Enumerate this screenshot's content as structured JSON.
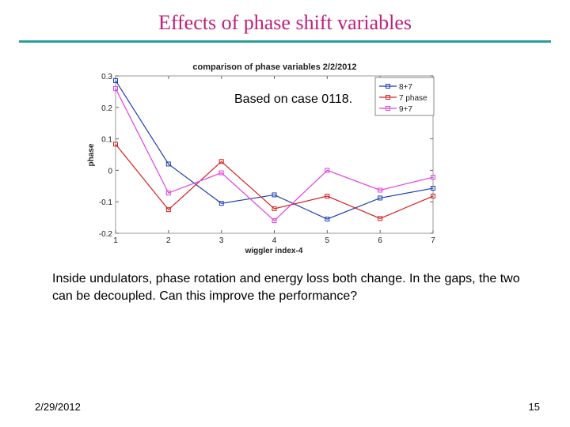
{
  "slide": {
    "title": "Effects of phase shift variables",
    "body": "Inside undulators, phase rotation and energy loss both change. In the gaps, the two can be decoupled. Can this improve the performance?",
    "date": "2/29/2012",
    "page_number": "15"
  },
  "chart_data": {
    "type": "line",
    "title": "comparison of phase variables 2/2/2012",
    "annotation": "Based on case 0118.",
    "xlabel": "wiggler index-4",
    "ylabel": "phase",
    "xlim": [
      1,
      7
    ],
    "ylim": [
      -0.2,
      0.3
    ],
    "x_ticks": [
      "1",
      "2",
      "3",
      "4",
      "5",
      "6",
      "7"
    ],
    "y_ticks": [
      "0.3",
      "0.2",
      "0.1",
      "0",
      "-0.1",
      "-0.2"
    ],
    "legend_position": "top-right",
    "x": [
      1,
      2,
      3,
      4,
      5,
      6,
      7
    ],
    "series": [
      {
        "name": "8+7",
        "color": "#1f3fb0",
        "values": [
          0.285,
          0.02,
          -0.105,
          -0.078,
          -0.155,
          -0.088,
          -0.057
        ]
      },
      {
        "name": "7 phase",
        "color": "#d62020",
        "values": [
          0.083,
          -0.125,
          0.028,
          -0.122,
          -0.082,
          -0.153,
          -0.082
        ]
      },
      {
        "name": "9+7",
        "color": "#e040e0",
        "values": [
          0.26,
          -0.072,
          -0.008,
          -0.16,
          0.0,
          -0.063,
          -0.022
        ]
      }
    ]
  }
}
